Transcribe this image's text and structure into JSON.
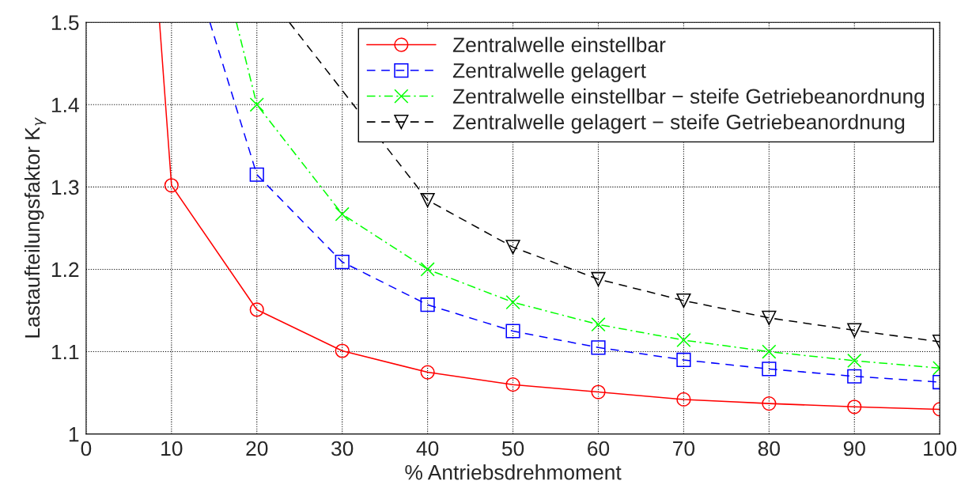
{
  "chart_data": {
    "type": "line",
    "xlabel": "% Antriebsdrehmoment",
    "ylabel": "Lastaufteilungsfaktor K$_{γ}$",
    "xlim": [
      0,
      100
    ],
    "xticks": [
      0,
      10,
      20,
      30,
      40,
      50,
      60,
      70,
      80,
      90,
      100
    ],
    "ylim": [
      1,
      1.5
    ],
    "yticks": [
      1,
      1.1,
      1.2,
      1.3,
      1.4,
      1.5
    ],
    "grid": true,
    "legend": "top right",
    "series": [
      {
        "name": "Zentralwelle einstellbar",
        "color": "#ff0000",
        "marker": "circle",
        "line_style": "solid",
        "x": [
          8.6,
          10,
          20,
          30,
          40,
          50,
          60,
          70,
          80,
          90,
          100
        ],
        "values": [
          1.5,
          1.302,
          1.151,
          1.101,
          1.075,
          1.06,
          1.051,
          1.042,
          1.037,
          1.033,
          1.03
        ]
      },
      {
        "name": "Zentralwelle gelagert",
        "color": "#0000ff",
        "marker": "square",
        "line_style": "dashed",
        "x": [
          14.5,
          20,
          30,
          40,
          50,
          60,
          70,
          80,
          90,
          100
        ],
        "values": [
          1.5,
          1.315,
          1.209,
          1.157,
          1.125,
          1.105,
          1.09,
          1.079,
          1.07,
          1.063
        ]
      },
      {
        "name": "Zentralwelle einstellbar − steife Getriebeanordnung",
        "color": "#00ff00",
        "marker": "cross",
        "line_style": "dashdot",
        "x": [
          17.6,
          20,
          30,
          40,
          50,
          60,
          70,
          80,
          90,
          100
        ],
        "values": [
          1.5,
          1.4,
          1.267,
          1.2,
          1.16,
          1.133,
          1.114,
          1.1,
          1.089,
          1.08
        ]
      },
      {
        "name": "Zentralwelle gelagert − steife Getriebeanordnung",
        "color": "#000000",
        "marker": "triangle",
        "line_style": "dashed",
        "x": [
          23.8,
          40,
          50,
          60,
          70,
          80,
          90,
          100
        ],
        "values": [
          1.5,
          1.284,
          1.227,
          1.188,
          1.162,
          1.141,
          1.126,
          1.112
        ]
      }
    ]
  }
}
